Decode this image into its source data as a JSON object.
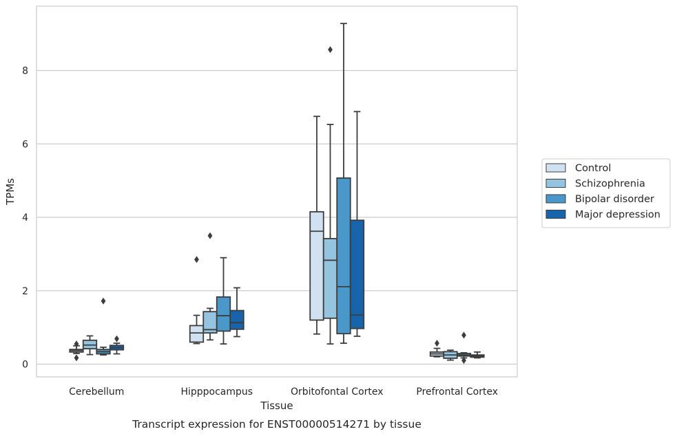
{
  "chart_data": {
    "type": "box",
    "title": "Transcript expression for ENST00000514271 by tissue",
    "xlabel": "Tissue",
    "ylabel": "TPMs",
    "ylim": [
      -0.35,
      9.8
    ],
    "yticks": [
      0,
      2,
      4,
      6,
      8
    ],
    "categories": [
      "Cerebellum",
      "Hipppocampus",
      "Orbitofontal Cortex",
      "Prefrontal Cortex"
    ],
    "grid": "horizontal",
    "legend_position": "right",
    "series": [
      {
        "name": "Control",
        "color": "#d0e1f2",
        "boxes": [
          {
            "whislo": 0.29,
            "q1": 0.33,
            "med": 0.37,
            "q3": 0.4,
            "whishi": 0.5,
            "fliers": [
              0.55,
              0.17
            ]
          },
          {
            "whislo": 0.56,
            "q1": 0.6,
            "med": 0.85,
            "q3": 1.05,
            "whishi": 1.33,
            "fliers": [
              2.85
            ]
          },
          {
            "whislo": 0.82,
            "q1": 1.2,
            "med": 3.62,
            "q3": 4.15,
            "whishi": 6.75,
            "fliers": []
          },
          {
            "whislo": 0.2,
            "q1": 0.22,
            "med": 0.28,
            "q3": 0.33,
            "whishi": 0.43,
            "fliers": [
              0.57
            ]
          }
        ]
      },
      {
        "name": "Schizophrenia",
        "color": "#94c4df",
        "boxes": [
          {
            "whislo": 0.26,
            "q1": 0.42,
            "med": 0.52,
            "q3": 0.65,
            "whishi": 0.77,
            "fliers": []
          },
          {
            "whislo": 0.66,
            "q1": 0.85,
            "med": 0.94,
            "q3": 1.43,
            "whishi": 1.52,
            "fliers": [
              3.5
            ]
          },
          {
            "whislo": 0.55,
            "q1": 1.25,
            "med": 2.83,
            "q3": 3.42,
            "whishi": 6.53,
            "fliers": [
              8.57
            ]
          },
          {
            "whislo": 0.11,
            "q1": 0.16,
            "med": 0.25,
            "q3": 0.34,
            "whishi": 0.38,
            "fliers": []
          }
        ]
      },
      {
        "name": "Bipolar disorder",
        "color": "#4a98c9",
        "boxes": [
          {
            "whislo": 0.25,
            "q1": 0.28,
            "med": 0.34,
            "q3": 0.4,
            "whishi": 0.46,
            "fliers": [
              1.72
            ]
          },
          {
            "whislo": 0.55,
            "q1": 0.9,
            "med": 1.32,
            "q3": 1.83,
            "whishi": 2.9,
            "fliers": []
          },
          {
            "whislo": 0.57,
            "q1": 0.83,
            "med": 2.11,
            "q3": 5.07,
            "whishi": 9.28,
            "fliers": []
          },
          {
            "whislo": 0.17,
            "q1": 0.22,
            "med": 0.25,
            "q3": 0.29,
            "whishi": 0.31,
            "fliers": [
              0.79,
              0.1
            ]
          }
        ]
      },
      {
        "name": "Major depression",
        "color": "#1764ab",
        "boxes": [
          {
            "whislo": 0.28,
            "q1": 0.39,
            "med": 0.45,
            "q3": 0.51,
            "whishi": 0.57,
            "fliers": [
              0.69
            ]
          },
          {
            "whislo": 0.75,
            "q1": 0.95,
            "med": 1.13,
            "q3": 1.46,
            "whishi": 2.08,
            "fliers": []
          },
          {
            "whislo": 0.76,
            "q1": 0.97,
            "med": 1.34,
            "q3": 3.92,
            "whishi": 6.88,
            "fliers": []
          },
          {
            "whislo": 0.17,
            "q1": 0.19,
            "med": 0.22,
            "q3": 0.25,
            "whishi": 0.33,
            "fliers": []
          }
        ]
      }
    ]
  }
}
